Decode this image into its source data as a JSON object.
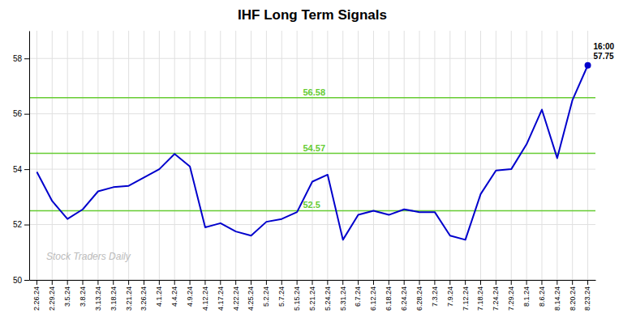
{
  "chart_data": {
    "type": "line",
    "title": "IHF Long Term Signals",
    "categories": [
      "2.26.24",
      "2.29.24",
      "3.5.24",
      "3.8.24",
      "3.13.24",
      "3.18.24",
      "3.21.24",
      "3.26.24",
      "4.1.24",
      "4.4.24",
      "4.9.24",
      "4.12.24",
      "4.17.24",
      "4.22.24",
      "4.25.24",
      "5.2.24",
      "5.7.24",
      "5.15.24",
      "5.21.24",
      "5.24.24",
      "5.31.24",
      "6.7.24",
      "6.12.24",
      "6.18.24",
      "6.24.24",
      "6.28.24",
      "7.3.24",
      "7.9.24",
      "7.12.24",
      "7.18.24",
      "7.24.24",
      "7.29.24",
      "8.1.24",
      "8.6.24",
      "8.14.24",
      "8.20.24",
      "8.23.24"
    ],
    "values": [
      53.9,
      52.85,
      52.2,
      52.55,
      53.2,
      53.35,
      53.4,
      53.7,
      54.0,
      54.55,
      54.1,
      51.9,
      52.05,
      51.75,
      51.6,
      52.1,
      52.2,
      52.45,
      53.55,
      53.8,
      51.45,
      52.35,
      52.5,
      52.35,
      52.55,
      52.45,
      52.45,
      51.6,
      51.45,
      53.1,
      53.95,
      54.0,
      54.9,
      56.15,
      54.4,
      56.5,
      57.75
    ],
    "color": "#0000cc",
    "ylim": [
      50,
      59
    ],
    "yticks": [
      50,
      52,
      54,
      56,
      58
    ],
    "grid": true,
    "hlines": {
      "values": [
        52.5,
        54.57,
        56.58
      ],
      "color": "#66cc33"
    },
    "annotations": [
      {
        "text": "16:00",
        "value": 57.75
      },
      {
        "text": "Stock Traders Daily",
        "color": "#bbbbbb"
      }
    ]
  }
}
